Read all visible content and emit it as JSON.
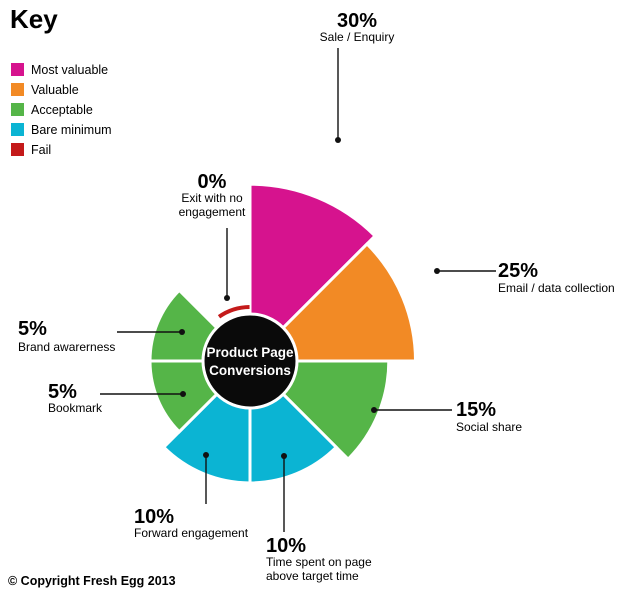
{
  "key": {
    "title": "Key",
    "items": [
      {
        "label": "Most valuable",
        "color": "#d6138e"
      },
      {
        "label": "Valuable",
        "color": "#f28a25"
      },
      {
        "label": "Acceptable",
        "color": "#55b548"
      },
      {
        "label": "Bare minimum",
        "color": "#0bb4d3"
      },
      {
        "label": "Fail",
        "color": "#c41a1a"
      }
    ]
  },
  "center_label": [
    "Product Page",
    "Conversions"
  ],
  "copyright": "© Copyright Fresh Egg 2013",
  "chart_data": {
    "type": "pie",
    "subtype": "polar-area",
    "title": "Product Page Conversions",
    "slices": [
      {
        "value": 30,
        "pct_label": "30%",
        "label_lines": [
          "Sale / Enquiry"
        ],
        "tier": "Most valuable",
        "color": "#d6138e"
      },
      {
        "value": 25,
        "pct_label": "25%",
        "label_lines": [
          "Email / data collection"
        ],
        "tier": "Valuable",
        "color": "#f28a25"
      },
      {
        "value": 15,
        "pct_label": "15%",
        "label_lines": [
          "Social share"
        ],
        "tier": "Acceptable",
        "color": "#55b548"
      },
      {
        "value": 10,
        "pct_label": "10%",
        "label_lines": [
          "Time spent on page",
          "above target time"
        ],
        "tier": "Bare minimum",
        "color": "#0bb4d3"
      },
      {
        "value": 10,
        "pct_label": "10%",
        "label_lines": [
          "Forward engagement"
        ],
        "tier": "Bare minimum",
        "color": "#0bb4d3"
      },
      {
        "value": 5,
        "pct_label": "5%",
        "label_lines": [
          "Bookmark"
        ],
        "tier": "Acceptable",
        "color": "#55b548"
      },
      {
        "value": 5,
        "pct_label": "5%",
        "label_lines": [
          "Brand awarerness"
        ],
        "tier": "Acceptable",
        "color": "#55b548"
      },
      {
        "value": 0,
        "pct_label": "0%",
        "label_lines": [
          "Exit with no",
          "engagement"
        ],
        "tier": "Fail",
        "color": "#c41a1a"
      }
    ]
  }
}
